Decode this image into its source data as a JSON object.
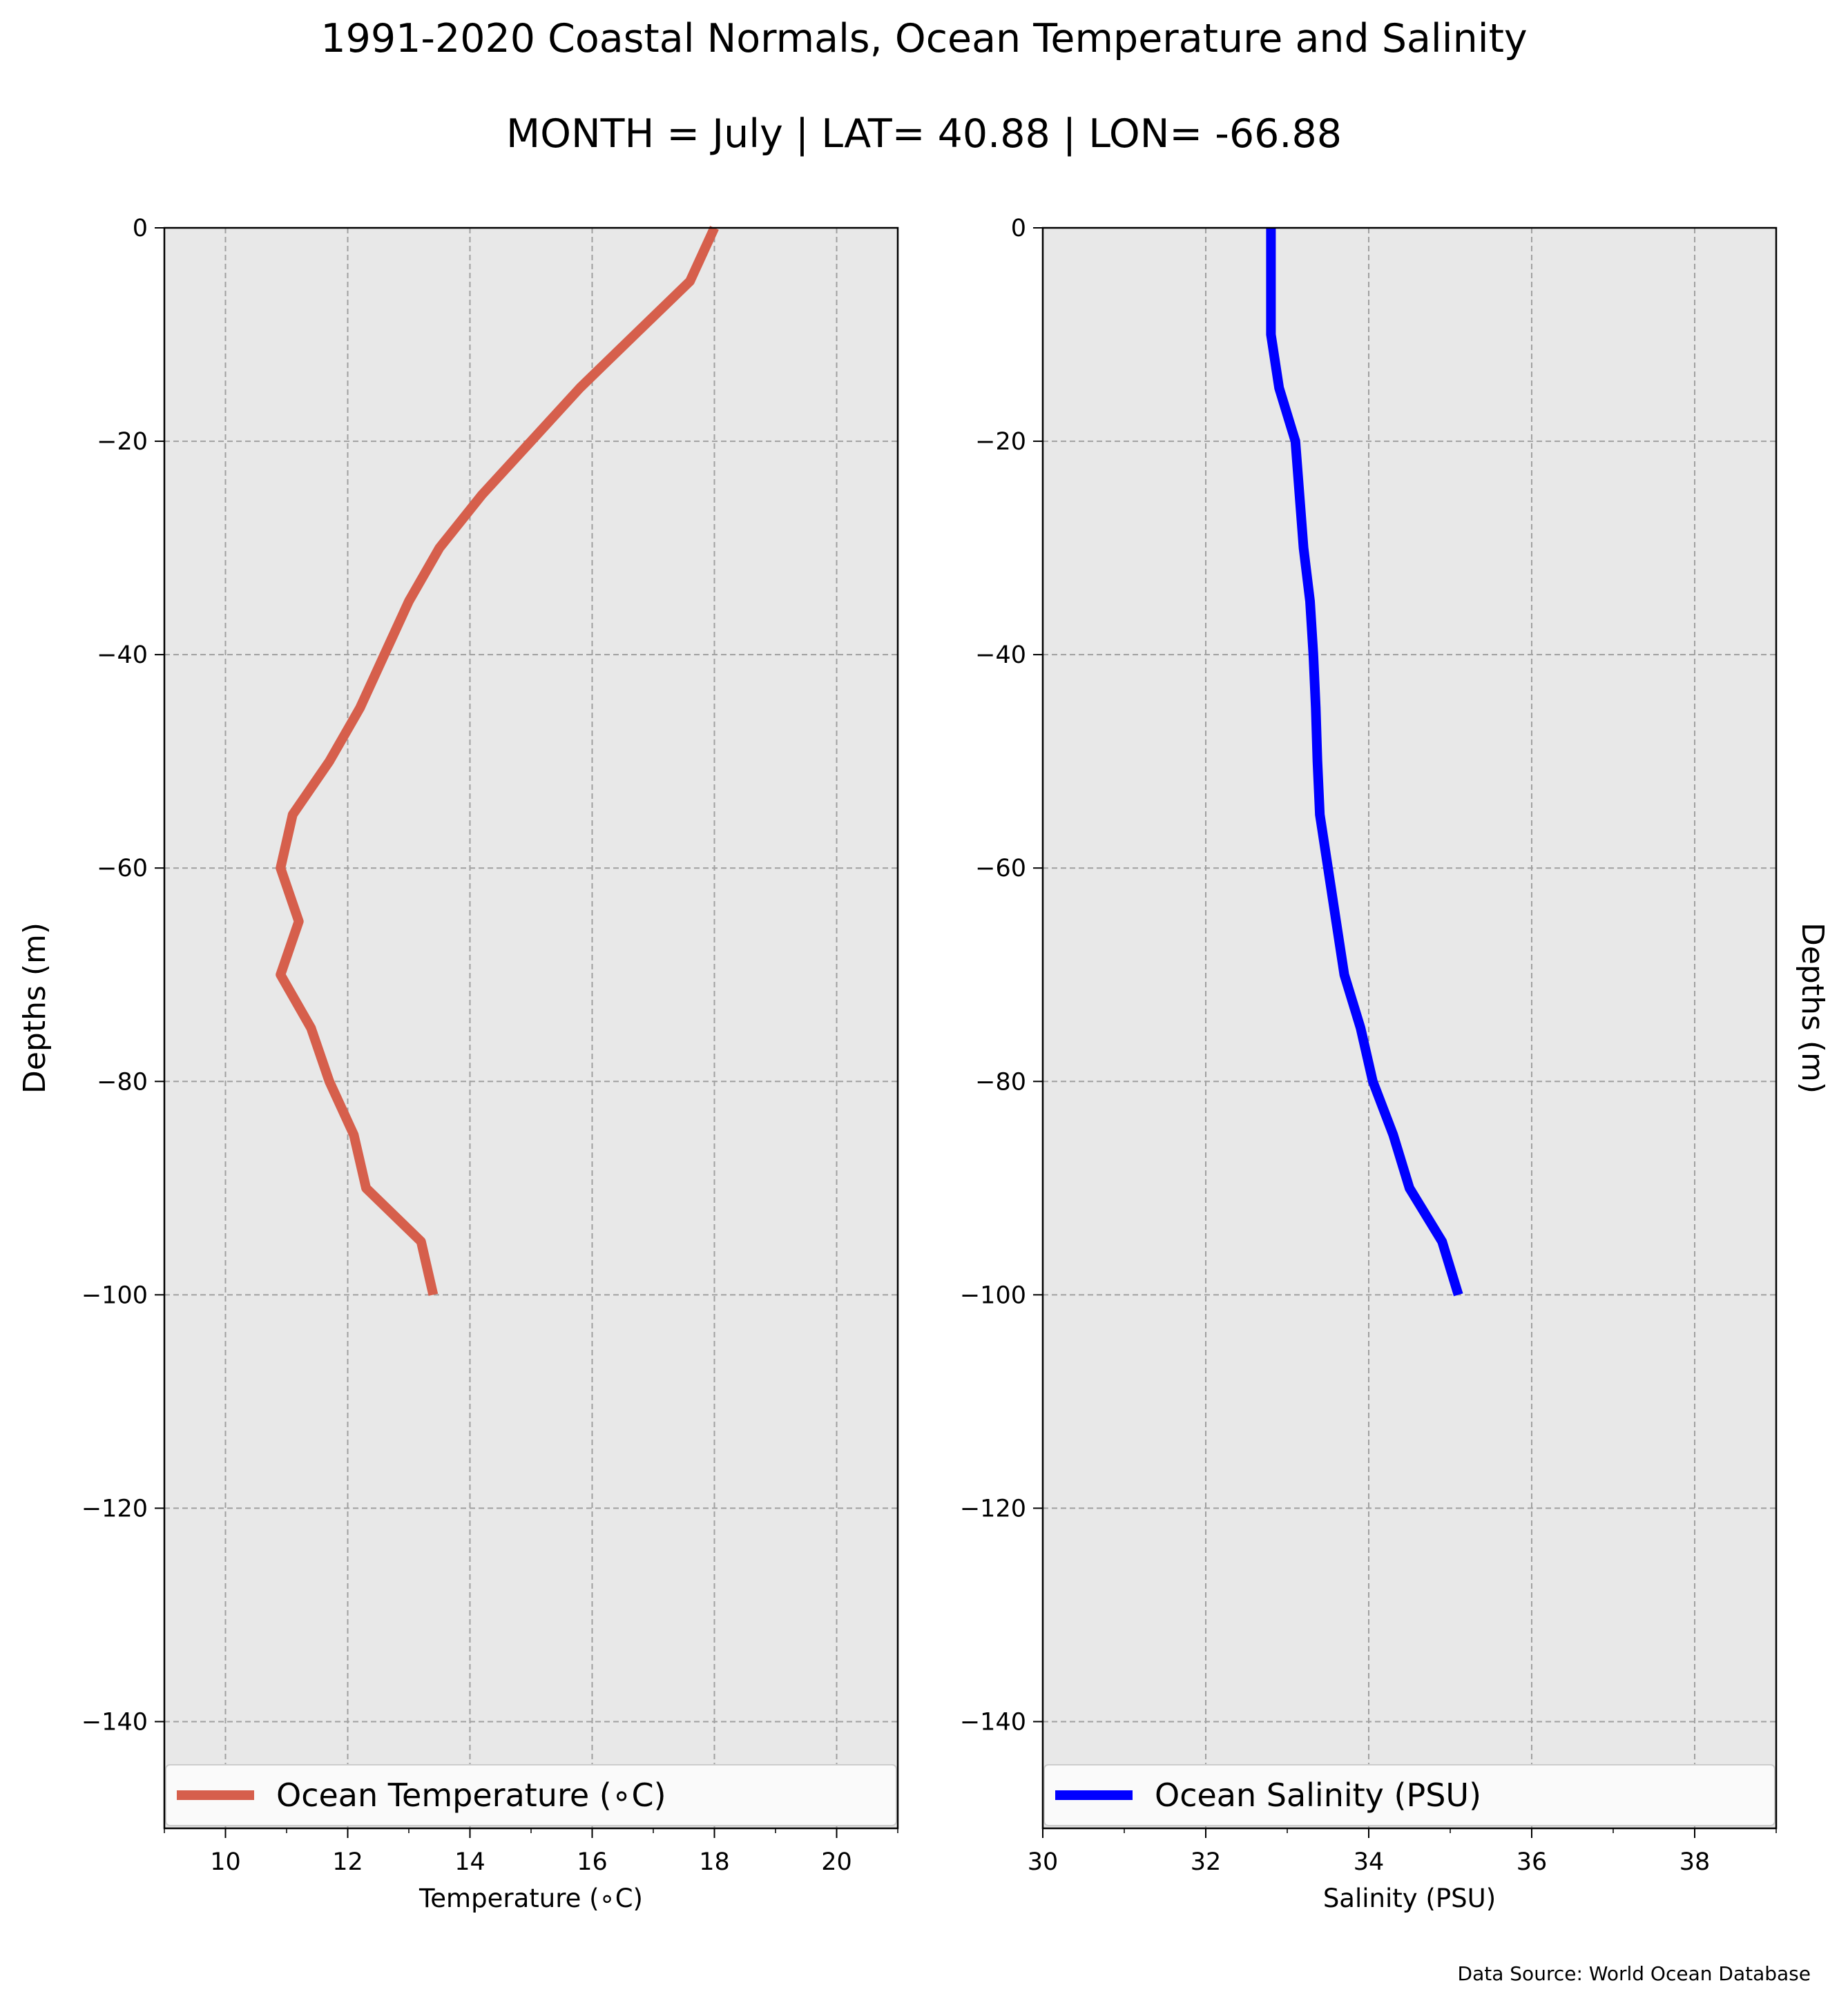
{
  "title": "1991-2020 Coastal Normals, Ocean Temperature and Salinity",
  "subtitle": "MONTH = July | LAT= 40.88 | LON= -66.88",
  "source": "Data Source: World Ocean Database",
  "colors": {
    "background": "#ffffff",
    "plot_bg": "#e8e8e8",
    "grid": "#a0a0a0"
  },
  "chart_data": [
    {
      "type": "line",
      "xlabel": "Temperature (∘C)",
      "ylabel": "Depths (m)",
      "xlim": [
        9,
        21
      ],
      "ylim": [
        -150,
        0
      ],
      "xticks": [
        10,
        12,
        14,
        16,
        18,
        20
      ],
      "xtick_labels": [
        "10",
        "12",
        "14",
        "16",
        "18",
        "20"
      ],
      "yticks": [
        0,
        -20,
        -40,
        -60,
        -80,
        -100,
        -120,
        -140
      ],
      "ytick_labels": [
        "0",
        "−20",
        "−40",
        "−60",
        "−80",
        "−100",
        "−120",
        "−140"
      ],
      "grid": true,
      "legend_placement": "bottom",
      "series": [
        {
          "name": "Ocean Temperature (∘C)",
          "color": "#d65f4c",
          "x": [
            18.0,
            17.6,
            16.7,
            15.8,
            15.0,
            14.2,
            13.5,
            13.0,
            12.6,
            12.2,
            11.7,
            11.1,
            10.9,
            11.2,
            10.9,
            11.4,
            11.7,
            12.1,
            12.3,
            13.2,
            13.4
          ],
          "y": [
            0,
            -5,
            -10,
            -15,
            -20,
            -25,
            -30,
            -35,
            -40,
            -45,
            -50,
            -55,
            -60,
            -65,
            -70,
            -75,
            -80,
            -85,
            -90,
            -95,
            -100
          ]
        }
      ]
    },
    {
      "type": "line",
      "xlabel": "Salinity (PSU)",
      "ylabel": "Depths (m)",
      "xlim": [
        30,
        39
      ],
      "ylim": [
        -150,
        0
      ],
      "xticks": [
        30,
        32,
        34,
        36,
        38
      ],
      "xtick_labels": [
        "30",
        "32",
        "34",
        "36",
        "38"
      ],
      "yticks": [
        0,
        -20,
        -40,
        -60,
        -80,
        -100,
        -120,
        -140
      ],
      "ytick_labels": [
        "0",
        "−20",
        "−40",
        "−60",
        "−80",
        "−100",
        "−120",
        "−140"
      ],
      "grid": true,
      "legend_placement": "bottom",
      "series": [
        {
          "name": "Ocean Salinity (PSU)",
          "color": "#0000ff",
          "x": [
            32.8,
            32.8,
            32.8,
            32.9,
            33.1,
            33.15,
            33.2,
            33.28,
            33.32,
            33.35,
            33.37,
            33.4,
            33.5,
            33.6,
            33.7,
            33.9,
            34.05,
            34.3,
            34.5,
            34.9,
            35.1
          ],
          "y": [
            0,
            -5,
            -10,
            -15,
            -20,
            -25,
            -30,
            -35,
            -40,
            -45,
            -50,
            -55,
            -60,
            -65,
            -70,
            -75,
            -80,
            -85,
            -90,
            -95,
            -100
          ]
        }
      ]
    }
  ]
}
